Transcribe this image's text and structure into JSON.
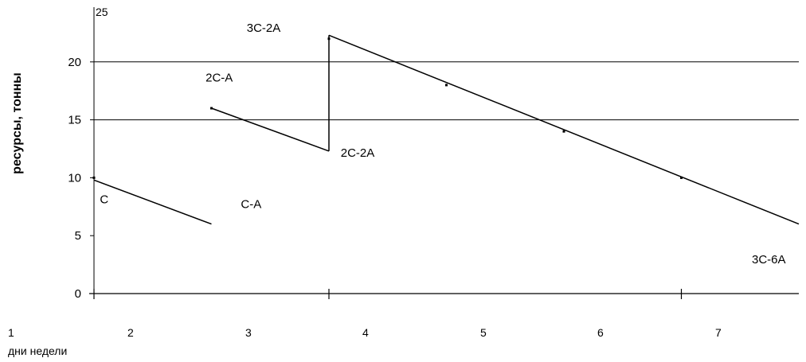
{
  "chart_data": {
    "type": "line",
    "title": "",
    "ylabel": "ресурсы, тонны",
    "xlabel": "дни недели",
    "ylim": [
      0,
      25
    ],
    "xlim": [
      1,
      7
    ],
    "y_ticks": [
      "0",
      "5",
      "10",
      "15",
      "20"
    ],
    "y_top_label": "25",
    "x_ticks": [
      "1",
      "2",
      "3",
      "4",
      "5",
      "6",
      "7"
    ],
    "gridlines_y": [
      15,
      20
    ],
    "segments": [
      {
        "points": [
          [
            1.0,
            9.8
          ],
          [
            2.0,
            6.0
          ]
        ]
      },
      {
        "points": [
          [
            2.0,
            16.0
          ],
          [
            3.0,
            12.3
          ]
        ]
      },
      {
        "points": [
          [
            3.0,
            12.3
          ],
          [
            3.0,
            22.3
          ]
        ]
      },
      {
        "points": [
          [
            3.0,
            22.3
          ],
          [
            7.0,
            6.0
          ]
        ]
      }
    ],
    "markers": [
      [
        1.0,
        10.0
      ],
      [
        2.0,
        16.0
      ],
      [
        3.0,
        22.0
      ],
      [
        4.0,
        18.0
      ],
      [
        5.0,
        14.0
      ],
      [
        6.0,
        10.0
      ]
    ],
    "annotations": [
      {
        "text": "C",
        "x": 1.05,
        "y": 7.8
      },
      {
        "text": "C-A",
        "x": 2.25,
        "y": 7.4
      },
      {
        "text": "2C-A",
        "x": 1.95,
        "y": 18.3
      },
      {
        "text": "2C-2A",
        "x": 3.1,
        "y": 11.8
      },
      {
        "text": "3C-2A",
        "x": 2.3,
        "y": 22.6
      },
      {
        "text": "3C-6A",
        "x": 6.6,
        "y": 2.6
      }
    ]
  }
}
